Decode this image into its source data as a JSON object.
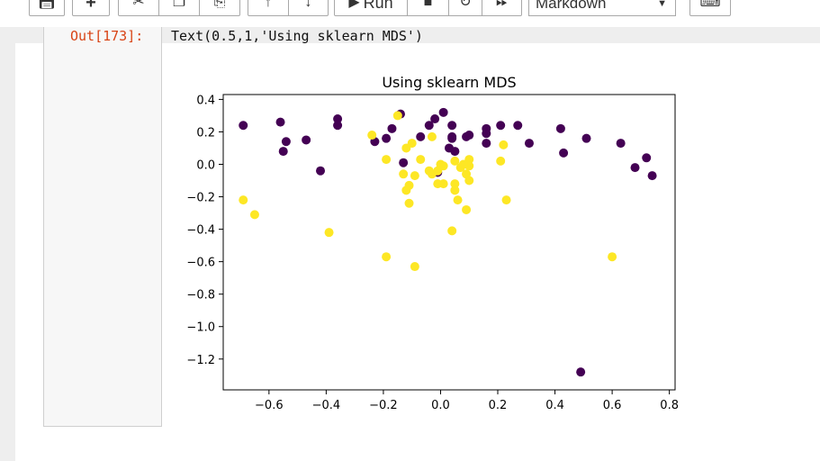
{
  "toolbar": {
    "run_label": "Run",
    "cell_type": "Markdown",
    "icons": [
      "save-icon",
      "insert-cell-below-icon",
      "cut-icon",
      "copy-icon",
      "paste-icon",
      "move-up-icon",
      "move-down-icon",
      "run-icon",
      "stop-icon",
      "restart-icon",
      "fast-forward-icon",
      "keyboard-icon"
    ]
  },
  "cell": {
    "prompt": "Out[173]:",
    "output_text": "Text(0.5,1,'Using sklearn MDS')"
  },
  "colors": {
    "class_a": "#440154",
    "class_b": "#fde725",
    "prompt": "#d84315"
  },
  "chart_data": {
    "type": "scatter",
    "title": "Using sklearn MDS",
    "xlabel": "",
    "ylabel": "",
    "xlim": [
      -0.76,
      0.82
    ],
    "ylim": [
      -1.39,
      0.43
    ],
    "xticks": [
      -0.6,
      -0.4,
      -0.2,
      0.0,
      0.2,
      0.4,
      0.6,
      0.8
    ],
    "xtick_labels": [
      "−0.6",
      "−0.4",
      "−0.2",
      "0.0",
      "0.2",
      "0.4",
      "0.6",
      "0.8"
    ],
    "yticks": [
      0.4,
      0.2,
      0.0,
      -0.2,
      -0.4,
      -0.6,
      -0.8,
      -1.0,
      -1.2
    ],
    "ytick_labels": [
      "0.4",
      "0.2",
      "0.0",
      "−0.2",
      "−0.4",
      "−0.6",
      "−0.8",
      "−1.0",
      "−1.2"
    ],
    "grid": false,
    "series": [
      {
        "color": "#440154",
        "points": [
          [
            -0.69,
            0.24
          ],
          [
            -0.56,
            0.26
          ],
          [
            -0.54,
            0.14
          ],
          [
            -0.55,
            0.08
          ],
          [
            -0.47,
            0.15
          ],
          [
            -0.42,
            -0.04
          ],
          [
            -0.36,
            0.28
          ],
          [
            -0.36,
            0.24
          ],
          [
            -0.23,
            0.14
          ],
          [
            -0.19,
            0.16
          ],
          [
            -0.17,
            0.22
          ],
          [
            -0.14,
            0.31
          ],
          [
            -0.13,
            0.01
          ],
          [
            -0.07,
            0.17
          ],
          [
            -0.04,
            0.24
          ],
          [
            -0.02,
            0.28
          ],
          [
            0.01,
            0.32
          ],
          [
            0.03,
            0.1
          ],
          [
            0.04,
            0.24
          ],
          [
            0.04,
            0.17
          ],
          [
            0.05,
            0.08
          ],
          [
            0.09,
            0.17
          ],
          [
            0.1,
            0.18
          ],
          [
            0.16,
            0.22
          ],
          [
            0.16,
            0.19
          ],
          [
            0.16,
            0.13
          ],
          [
            0.21,
            0.24
          ],
          [
            0.27,
            0.24
          ],
          [
            0.31,
            0.13
          ],
          [
            0.42,
            0.22
          ],
          [
            0.43,
            0.07
          ],
          [
            0.51,
            0.16
          ],
          [
            0.63,
            0.13
          ],
          [
            0.68,
            -0.02
          ],
          [
            0.72,
            0.04
          ],
          [
            0.74,
            -0.07
          ],
          [
            0.49,
            -1.28
          ],
          [
            -0.01,
            -0.05
          ],
          [
            0.04,
            0.16
          ]
        ]
      },
      {
        "color": "#fde725",
        "points": [
          [
            -0.69,
            -0.22
          ],
          [
            -0.65,
            -0.31
          ],
          [
            -0.39,
            -0.42
          ],
          [
            -0.19,
            -0.57
          ],
          [
            -0.09,
            -0.63
          ],
          [
            0.6,
            -0.57
          ],
          [
            0.04,
            -0.41
          ],
          [
            0.23,
            -0.22
          ],
          [
            -0.24,
            0.18
          ],
          [
            -0.19,
            0.03
          ],
          [
            -0.15,
            0.3
          ],
          [
            -0.12,
            0.1
          ],
          [
            -0.1,
            0.13
          ],
          [
            -0.07,
            0.03
          ],
          [
            -0.13,
            -0.06
          ],
          [
            -0.09,
            -0.07
          ],
          [
            -0.11,
            -0.13
          ],
          [
            -0.12,
            -0.16
          ],
          [
            -0.11,
            -0.24
          ],
          [
            -0.03,
            0.17
          ],
          [
            -0.04,
            -0.04
          ],
          [
            -0.03,
            -0.06
          ],
          [
            -0.01,
            -0.04
          ],
          [
            0.0,
            0.0
          ],
          [
            0.01,
            -0.01
          ],
          [
            -0.01,
            -0.12
          ],
          [
            0.01,
            -0.12
          ],
          [
            0.05,
            -0.12
          ],
          [
            0.05,
            -0.16
          ],
          [
            0.06,
            -0.22
          ],
          [
            0.09,
            -0.28
          ],
          [
            0.05,
            0.02
          ],
          [
            0.07,
            -0.02
          ],
          [
            0.09,
            -0.06
          ],
          [
            0.1,
            0.03
          ],
          [
            0.1,
            -0.01
          ],
          [
            0.1,
            -0.1
          ],
          [
            0.21,
            0.02
          ],
          [
            0.22,
            0.12
          ],
          [
            0.08,
            0.0
          ]
        ]
      }
    ]
  }
}
